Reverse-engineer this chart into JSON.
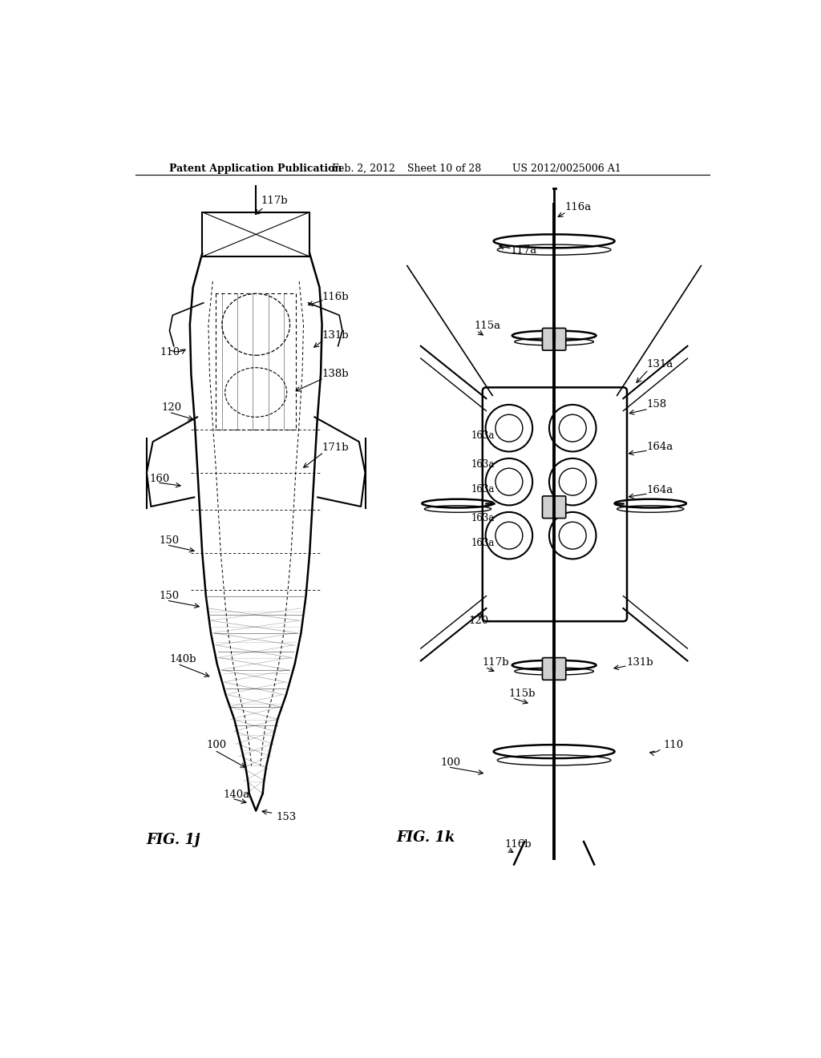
{
  "background_color": "#ffffff",
  "header_text": "Patent Application Publication",
  "header_date": "Feb. 2, 2012",
  "header_sheet": "Sheet 10 of 28",
  "header_patent": "US 2012/0025006 A1",
  "fig1j_label": "FIG. 1j",
  "fig1k_label": "FIG. 1k"
}
